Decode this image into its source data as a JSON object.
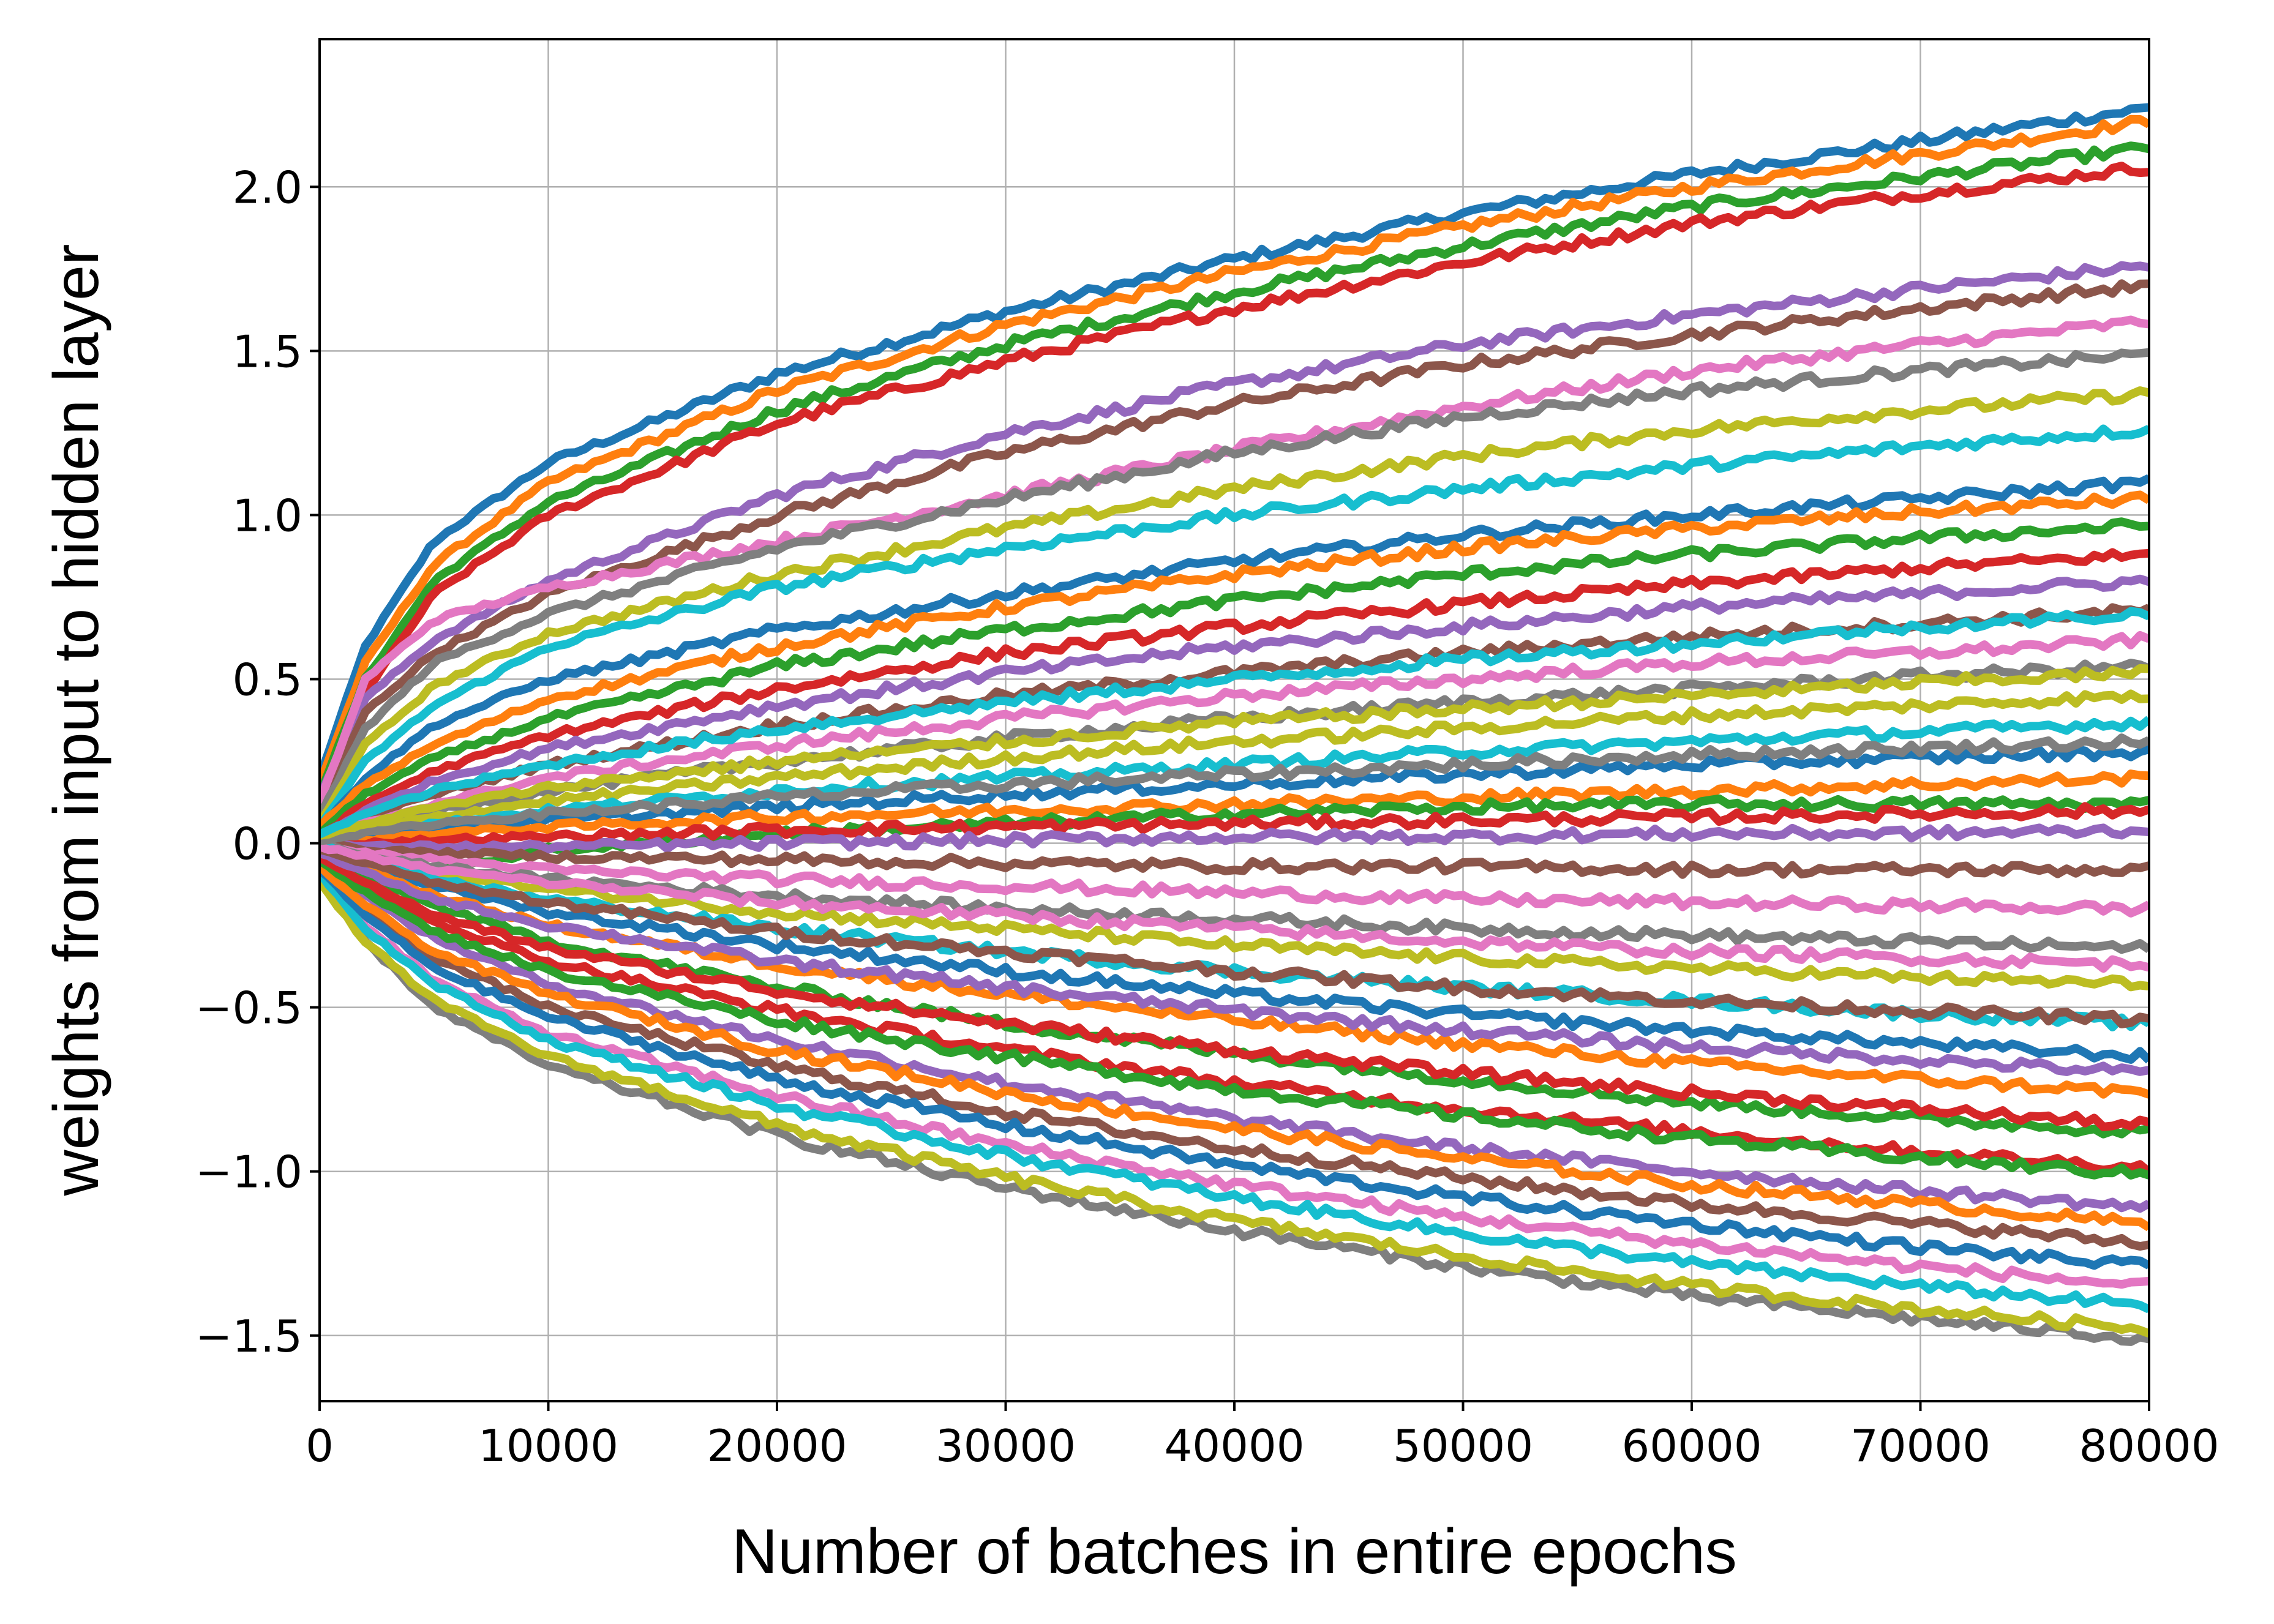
{
  "chart_data": {
    "type": "line",
    "title": "",
    "xlabel": "Number of batches in entire epochs",
    "ylabel": "weights from input to hidden layer",
    "xlim": [
      0,
      80000
    ],
    "ylim": [
      -1.7,
      2.45
    ],
    "x_ticks": [
      {
        "value": 0,
        "label": "0"
      },
      {
        "value": 10000,
        "label": "10000"
      },
      {
        "value": 20000,
        "label": "20000"
      },
      {
        "value": 30000,
        "label": "30000"
      },
      {
        "value": 40000,
        "label": "40000"
      },
      {
        "value": 50000,
        "label": "50000"
      },
      {
        "value": 60000,
        "label": "60000"
      },
      {
        "value": 70000,
        "label": "70000"
      },
      {
        "value": 80000,
        "label": "80000"
      }
    ],
    "y_ticks": [
      {
        "value": -1.5,
        "label": "−1.5"
      },
      {
        "value": -1.0,
        "label": "−1.0"
      },
      {
        "value": -0.5,
        "label": "−0.5"
      },
      {
        "value": 0.0,
        "label": "0.0"
      },
      {
        "value": 0.5,
        "label": "0.5"
      },
      {
        "value": 1.0,
        "label": "1.0"
      },
      {
        "value": 1.5,
        "label": "1.5"
      },
      {
        "value": 2.0,
        "label": "2.0"
      }
    ],
    "grid": true,
    "legend": "none",
    "colors": [
      "#1f77b4",
      "#ff7f0e",
      "#2ca02c",
      "#d62728",
      "#9467bd",
      "#8c564b",
      "#e377c2",
      "#7f7f7f",
      "#bcbd22",
      "#17becf"
    ],
    "x": [
      0,
      2000,
      5000,
      10000,
      20000,
      30000,
      40000,
      50000,
      60000,
      70000,
      80000
    ],
    "series": [
      {
        "values": [
          0.2,
          0.6,
          0.92,
          1.16,
          1.43,
          1.62,
          1.78,
          1.92,
          2.04,
          2.14,
          2.24
        ]
      },
      {
        "values": [
          0.18,
          0.55,
          0.85,
          1.1,
          1.38,
          1.58,
          1.74,
          1.88,
          2.0,
          2.1,
          2.2
        ]
      },
      {
        "values": [
          0.15,
          0.5,
          0.8,
          1.04,
          1.32,
          1.52,
          1.68,
          1.82,
          1.94,
          2.03,
          2.12
        ]
      },
      {
        "values": [
          0.12,
          0.46,
          0.76,
          1.0,
          1.28,
          1.47,
          1.63,
          1.77,
          1.89,
          1.98,
          2.06
        ]
      },
      {
        "values": [
          0.14,
          0.44,
          0.62,
          0.8,
          1.06,
          1.25,
          1.4,
          1.52,
          1.61,
          1.69,
          1.76
        ]
      },
      {
        "values": [
          0.1,
          0.4,
          0.58,
          0.76,
          1.0,
          1.19,
          1.34,
          1.46,
          1.55,
          1.63,
          1.7
        ]
      },
      {
        "values": [
          0.12,
          0.5,
          0.68,
          0.78,
          0.92,
          1.06,
          1.2,
          1.33,
          1.44,
          1.52,
          1.59
        ]
      },
      {
        "values": [
          0.08,
          0.35,
          0.55,
          0.7,
          0.9,
          1.05,
          1.19,
          1.3,
          1.38,
          1.44,
          1.49
        ]
      },
      {
        "values": [
          0.06,
          0.3,
          0.48,
          0.64,
          0.82,
          0.96,
          1.08,
          1.18,
          1.26,
          1.32,
          1.37
        ]
      },
      {
        "values": [
          0.05,
          0.25,
          0.42,
          0.6,
          0.78,
          0.9,
          1.0,
          1.08,
          1.15,
          1.21,
          1.26
        ]
      },
      {
        "values": [
          0.04,
          0.2,
          0.36,
          0.5,
          0.65,
          0.76,
          0.86,
          0.94,
          1.0,
          1.05,
          1.1
        ]
      },
      {
        "values": [
          0.05,
          0.18,
          0.3,
          0.44,
          0.6,
          0.72,
          0.82,
          0.9,
          0.96,
          1.01,
          1.05
        ]
      },
      {
        "values": [
          0.03,
          0.15,
          0.26,
          0.38,
          0.54,
          0.65,
          0.74,
          0.82,
          0.88,
          0.93,
          0.97
        ]
      },
      {
        "values": [
          0.02,
          0.12,
          0.22,
          0.33,
          0.47,
          0.58,
          0.66,
          0.73,
          0.79,
          0.84,
          0.88
        ]
      },
      {
        "values": [
          0.02,
          0.1,
          0.19,
          0.29,
          0.42,
          0.52,
          0.6,
          0.66,
          0.72,
          0.76,
          0.8
        ]
      },
      {
        "values": [
          0.01,
          0.08,
          0.15,
          0.24,
          0.36,
          0.45,
          0.52,
          0.58,
          0.63,
          0.67,
          0.71
        ]
      },
      {
        "values": [
          0.01,
          0.06,
          0.12,
          0.2,
          0.3,
          0.38,
          0.45,
          0.5,
          0.55,
          0.58,
          0.62
        ]
      },
      {
        "values": [
          0.0,
          0.05,
          0.1,
          0.16,
          0.25,
          0.32,
          0.38,
          0.43,
          0.47,
          0.51,
          0.54
        ]
      },
      {
        "values": [
          0.0,
          0.04,
          0.08,
          0.13,
          0.2,
          0.26,
          0.31,
          0.35,
          0.39,
          0.42,
          0.45
        ]
      },
      {
        "values": [
          0.0,
          0.03,
          0.06,
          0.1,
          0.16,
          0.2,
          0.24,
          0.28,
          0.31,
          0.34,
          0.37
        ]
      },
      {
        "values": [
          0.0,
          0.02,
          0.04,
          0.07,
          0.11,
          0.15,
          0.18,
          0.21,
          0.24,
          0.26,
          0.28
        ]
      },
      {
        "values": [
          0.0,
          0.01,
          0.03,
          0.05,
          0.08,
          0.1,
          0.12,
          0.14,
          0.16,
          0.18,
          0.2
        ]
      },
      {
        "values": [
          -0.05,
          -0.1,
          -0.08,
          -0.02,
          0.03,
          0.06,
          0.09,
          0.11,
          0.12,
          0.12,
          0.12
        ]
      },
      {
        "values": [
          0.0,
          0.0,
          0.01,
          0.02,
          0.04,
          0.05,
          0.06,
          0.07,
          0.08,
          0.09,
          0.1
        ]
      },
      {
        "values": [
          0.0,
          -0.01,
          -0.01,
          -0.01,
          0.0,
          0.01,
          0.02,
          0.02,
          0.03,
          0.03,
          0.04
        ]
      },
      {
        "values": [
          0.0,
          -0.02,
          -0.03,
          -0.04,
          -0.05,
          -0.06,
          -0.07,
          -0.07,
          -0.08,
          -0.08,
          -0.08
        ]
      },
      {
        "values": [
          0.0,
          -0.03,
          -0.05,
          -0.08,
          -0.11,
          -0.13,
          -0.15,
          -0.17,
          -0.18,
          -0.19,
          -0.2
        ]
      },
      {
        "values": [
          0.0,
          -0.04,
          -0.07,
          -0.11,
          -0.16,
          -0.2,
          -0.23,
          -0.26,
          -0.28,
          -0.3,
          -0.32
        ]
      },
      {
        "values": [
          0.0,
          -0.05,
          -0.09,
          -0.14,
          -0.21,
          -0.26,
          -0.31,
          -0.35,
          -0.38,
          -0.41,
          -0.43
        ]
      },
      {
        "values": [
          0.0,
          -0.06,
          -0.11,
          -0.17,
          -0.26,
          -0.33,
          -0.39,
          -0.44,
          -0.48,
          -0.52,
          -0.55
        ]
      },
      {
        "values": [
          -0.01,
          -0.07,
          -0.13,
          -0.21,
          -0.31,
          -0.39,
          -0.46,
          -0.52,
          -0.57,
          -0.61,
          -0.65
        ]
      },
      {
        "values": [
          -0.01,
          -0.08,
          -0.16,
          -0.25,
          -0.37,
          -0.46,
          -0.54,
          -0.61,
          -0.67,
          -0.72,
          -0.76
        ]
      },
      {
        "values": [
          -0.02,
          -0.1,
          -0.19,
          -0.3,
          -0.44,
          -0.55,
          -0.64,
          -0.72,
          -0.79,
          -0.84,
          -0.88
        ]
      },
      {
        "values": [
          -0.03,
          -0.13,
          -0.24,
          -0.36,
          -0.51,
          -0.63,
          -0.73,
          -0.81,
          -0.88,
          -0.94,
          -0.99
        ]
      },
      {
        "values": [
          -0.04,
          -0.16,
          -0.29,
          -0.43,
          -0.6,
          -0.73,
          -0.84,
          -0.93,
          -1.0,
          -1.06,
          -1.11
        ]
      },
      {
        "values": [
          -0.06,
          -0.2,
          -0.35,
          -0.5,
          -0.68,
          -0.82,
          -0.93,
          -1.02,
          -1.1,
          -1.16,
          -1.22
        ]
      },
      {
        "values": [
          -0.08,
          -0.25,
          -0.42,
          -0.58,
          -0.77,
          -0.92,
          -1.04,
          -1.14,
          -1.22,
          -1.29,
          -1.35
        ]
      },
      {
        "values": [
          -0.1,
          -0.3,
          -0.5,
          -0.68,
          -0.89,
          -1.05,
          -1.18,
          -1.29,
          -1.38,
          -1.45,
          -1.51
        ]
      },
      {
        "values": [
          -0.12,
          -0.3,
          -0.48,
          -0.65,
          -0.86,
          -1.02,
          -1.15,
          -1.26,
          -1.35,
          -1.42,
          -1.48
        ]
      },
      {
        "values": [
          -0.09,
          -0.26,
          -0.43,
          -0.6,
          -0.8,
          -0.95,
          -1.08,
          -1.19,
          -1.28,
          -1.35,
          -1.41
        ]
      },
      {
        "values": [
          -0.08,
          -0.22,
          -0.38,
          -0.53,
          -0.72,
          -0.86,
          -0.98,
          -1.08,
          -1.16,
          -1.23,
          -1.29
        ]
      },
      {
        "values": [
          -0.07,
          -0.19,
          -0.33,
          -0.46,
          -0.63,
          -0.76,
          -0.87,
          -0.96,
          -1.04,
          -1.1,
          -1.16
        ]
      },
      {
        "values": [
          -0.05,
          -0.15,
          -0.27,
          -0.39,
          -0.54,
          -0.65,
          -0.75,
          -0.83,
          -0.9,
          -0.96,
          -1.01
        ]
      },
      {
        "values": [
          -0.04,
          -0.12,
          -0.22,
          -0.32,
          -0.45,
          -0.55,
          -0.63,
          -0.7,
          -0.76,
          -0.81,
          -0.86
        ]
      },
      {
        "values": [
          -0.03,
          -0.09,
          -0.17,
          -0.25,
          -0.36,
          -0.44,
          -0.51,
          -0.57,
          -0.62,
          -0.66,
          -0.7
        ]
      },
      {
        "values": [
          -0.02,
          -0.06,
          -0.12,
          -0.18,
          -0.27,
          -0.33,
          -0.39,
          -0.44,
          -0.48,
          -0.51,
          -0.54
        ]
      },
      {
        "values": [
          -0.01,
          -0.04,
          -0.08,
          -0.12,
          -0.18,
          -0.22,
          -0.26,
          -0.3,
          -0.33,
          -0.35,
          -0.37
        ]
      },
      {
        "values": [
          0.01,
          0.03,
          0.06,
          0.09,
          0.14,
          0.18,
          0.21,
          0.24,
          0.27,
          0.29,
          0.31
        ]
      },
      {
        "values": [
          0.02,
          0.06,
          0.11,
          0.17,
          0.25,
          0.31,
          0.37,
          0.41,
          0.45,
          0.49,
          0.52
        ]
      },
      {
        "values": [
          0.03,
          0.09,
          0.16,
          0.24,
          0.35,
          0.43,
          0.5,
          0.56,
          0.61,
          0.66,
          0.7
        ]
      }
    ]
  }
}
